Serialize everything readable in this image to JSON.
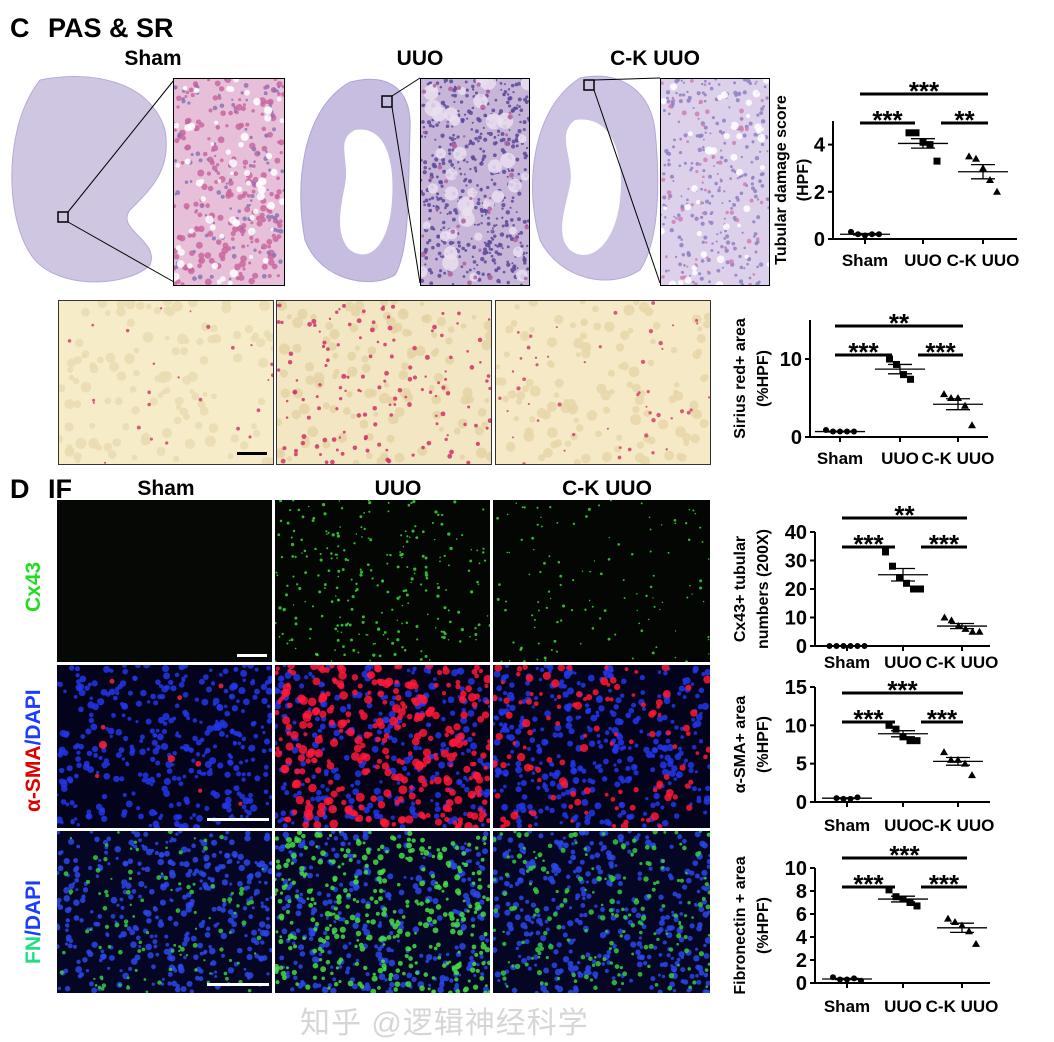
{
  "panel_c": {
    "letter": "C",
    "title": "PAS & SR",
    "columns": [
      "Sham",
      "UUO",
      "C-K UUO"
    ]
  },
  "panel_d": {
    "letter": "D",
    "title": "IF",
    "columns": [
      "Sham",
      "UUO",
      "C-K UUO"
    ],
    "rows": [
      {
        "parts": [
          {
            "text": "Cx43",
            "color": "#22dd22"
          }
        ]
      },
      {
        "parts": [
          {
            "text": "α-SMA",
            "color": "#e00000"
          },
          {
            "text": "/DAPI",
            "color": "#1a3cff"
          }
        ]
      },
      {
        "parts": [
          {
            "text": "FN",
            "color": "#22dd88"
          },
          {
            "text": "/DAPI",
            "color": "#1a3cff"
          }
        ]
      }
    ]
  },
  "watermark": "知乎 @逻辑神经科学",
  "chart_data": [
    {
      "type": "scatter",
      "ylabel": [
        "Tubular damage score",
        "(HPF)"
      ],
      "categories": [
        "Sham",
        "UUO",
        "C-K UUO"
      ],
      "ylim": [
        0,
        5
      ],
      "yticks": [
        0,
        2,
        4
      ],
      "markers": [
        "circle",
        "square",
        "triangle"
      ],
      "points": [
        [
          0.3,
          0.2,
          0.15,
          0.2,
          0.2
        ],
        [
          4.5,
          4.5,
          4.1,
          4.0,
          3.3
        ],
        [
          3.5,
          3.4,
          3.0,
          2.5,
          2.0
        ]
      ],
      "mean": [
        0.2,
        4.05,
        2.85
      ],
      "sem": [
        0.03,
        0.2,
        0.3
      ],
      "significance": [
        {
          "from": 0,
          "to": 2,
          "label": "***",
          "level": "top"
        },
        {
          "from": 0,
          "to": 1,
          "label": "***",
          "level": "low"
        },
        {
          "from": 1,
          "to": 2,
          "label": "**",
          "level": "low"
        }
      ]
    },
    {
      "type": "scatter",
      "ylabel": [
        "Sirius red+ area",
        "(%HPF)"
      ],
      "categories": [
        "Sham",
        "UUO",
        "C-K UUO"
      ],
      "ylim": [
        0,
        15
      ],
      "yticks": [
        0,
        10
      ],
      "markers": [
        "circle",
        "square",
        "triangle"
      ],
      "points": [
        [
          0.9,
          0.7,
          0.7,
          0.7,
          0.7
        ],
        [
          10.0,
          9.3,
          8.0,
          7.4
        ],
        [
          5.5,
          5.0,
          5.0,
          4.0,
          1.5
        ]
      ],
      "mean": [
        0.7,
        8.7,
        4.2
      ],
      "sem": [
        0.05,
        0.6,
        0.7
      ],
      "significance": [
        {
          "from": 0,
          "to": 2,
          "label": "**",
          "level": "top"
        },
        {
          "from": 0,
          "to": 1,
          "label": "***",
          "level": "low"
        },
        {
          "from": 1,
          "to": 2,
          "label": "***",
          "level": "low"
        }
      ]
    },
    {
      "type": "scatter",
      "ylabel": [
        "Cx43+ tubular",
        "numbers (200X)"
      ],
      "categories": [
        "Sham",
        "UUO",
        "C-K UUO"
      ],
      "ylim": [
        0,
        40
      ],
      "yticks": [
        0,
        10,
        20,
        30,
        40
      ],
      "markers": [
        "circle",
        "square",
        "triangle"
      ],
      "points": [
        [
          0,
          0,
          0,
          0,
          0,
          0
        ],
        [
          33,
          28,
          24,
          22,
          20,
          20
        ],
        [
          10,
          9,
          7,
          6,
          5,
          5
        ]
      ],
      "mean": [
        0,
        25,
        7
      ],
      "sem": [
        0,
        2.2,
        0.9
      ],
      "significance": [
        {
          "from": 0,
          "to": 2,
          "label": "**",
          "level": "top"
        },
        {
          "from": 0,
          "to": 1,
          "label": "***",
          "level": "low"
        },
        {
          "from": 1,
          "to": 2,
          "label": "***",
          "level": "low"
        }
      ]
    },
    {
      "type": "scatter",
      "ylabel": [
        "α-SMA+ area",
        "(%HPF)"
      ],
      "categories": [
        "Sham",
        "UUO",
        "C-K UUO"
      ],
      "ylim": [
        0,
        15
      ],
      "yticks": [
        0,
        5,
        10,
        15
      ],
      "markers": [
        "circle",
        "square",
        "triangle"
      ],
      "points": [
        [
          0.5,
          0.4,
          0.4,
          0.6
        ],
        [
          10.0,
          9.5,
          8.5,
          8.0,
          8.0
        ],
        [
          6.5,
          5.5,
          5.5,
          5.0,
          3.5
        ]
      ],
      "mean": [
        0.5,
        8.9,
        5.3
      ],
      "sem": [
        0.05,
        0.4,
        0.5
      ],
      "significance": [
        {
          "from": 0,
          "to": 2,
          "label": "***",
          "level": "top"
        },
        {
          "from": 0,
          "to": 1,
          "label": "***",
          "level": "low"
        },
        {
          "from": 1,
          "to": 2,
          "label": "***",
          "level": "low"
        }
      ]
    },
    {
      "type": "scatter",
      "ylabel": [
        "Fibronectin + area",
        "(%HPF)"
      ],
      "categories": [
        "Sham",
        "UUO",
        "C-K UUO"
      ],
      "ylim": [
        0,
        10
      ],
      "yticks": [
        0,
        2,
        4,
        6,
        8,
        10
      ],
      "markers": [
        "circle",
        "square",
        "triangle"
      ],
      "points": [
        [
          0.5,
          0.3,
          0.3,
          0.4,
          0.2
        ],
        [
          8.1,
          7.5,
          7.3,
          7.0,
          6.7
        ],
        [
          5.6,
          5.3,
          5.0,
          4.5,
          3.4
        ]
      ],
      "mean": [
        0.35,
        7.3,
        4.8
      ],
      "sem": [
        0.05,
        0.25,
        0.4
      ],
      "significance": [
        {
          "from": 0,
          "to": 2,
          "label": "***",
          "level": "top"
        },
        {
          "from": 0,
          "to": 1,
          "label": "***",
          "level": "low"
        },
        {
          "from": 1,
          "to": 2,
          "label": "***",
          "level": "low"
        }
      ]
    }
  ]
}
